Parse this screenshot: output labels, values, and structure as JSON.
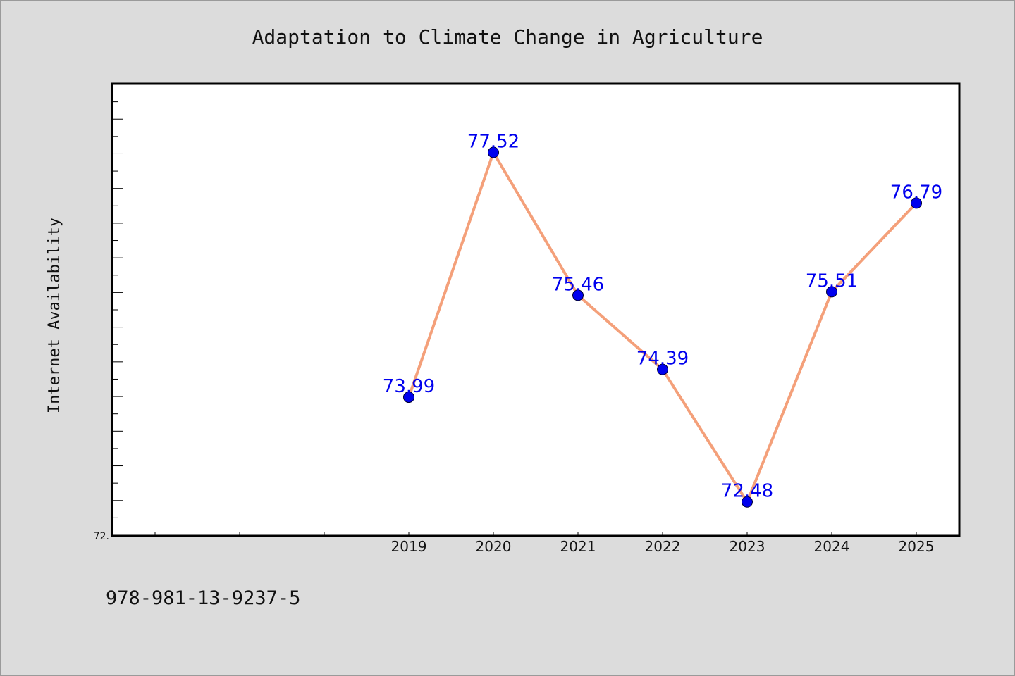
{
  "chart_data": {
    "type": "line",
    "title": "Adaptation to Climate Change in Agriculture",
    "xlabel": "",
    "ylabel": "Internet Availability",
    "categories": [
      "2019",
      "2020",
      "2021",
      "2022",
      "2023",
      "2024",
      "2025"
    ],
    "series": [
      {
        "values": [
          73.99,
          77.52,
          75.46,
          74.39,
          72.48,
          75.51,
          76.79
        ],
        "labels": [
          "73.99",
          "77.52",
          "75.46",
          "74.39",
          "72.48",
          "75.51",
          "76.79"
        ],
        "line_color": "#f4a07a",
        "marker_color": "#0000ee",
        "label_color": "#0000ee"
      }
    ],
    "ylim": [
      72,
      78.5
    ],
    "y_tick_label": "72.",
    "x_slots": 10,
    "first_category_slot": 3,
    "grid": false,
    "legend": "none"
  },
  "footnote": "978-981-13-9237-5",
  "colors": {
    "background": "#dcdcdc",
    "plot_background": "#ffffff",
    "axis": "#000000"
  }
}
